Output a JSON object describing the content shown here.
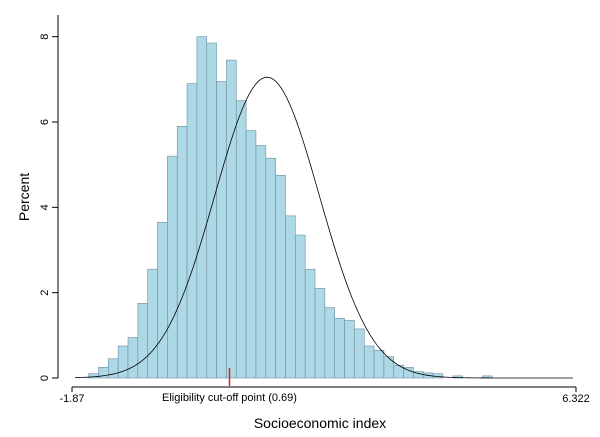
{
  "chart_data": {
    "type": "bar",
    "subtype": "histogram",
    "xlabel": "Socioeconomic index",
    "ylabel": "Percent",
    "xlim": [
      -1.87,
      6.322
    ],
    "ylim": [
      0,
      8.2
    ],
    "x_tick_labels": [
      "-1.87",
      "6.322"
    ],
    "y_ticks": [
      0,
      2,
      4,
      6,
      8
    ],
    "y_tick_labels": [
      "0",
      "2",
      "4",
      "6",
      "8"
    ],
    "grid": false,
    "legend": "none",
    "bar_color": "#add8e6",
    "bar_edge_color": "#6e8fa0",
    "curve_color": "#000000",
    "cutoff_color": "#e02020",
    "bins": {
      "start": -1.6,
      "width": 0.16,
      "values": [
        0.1,
        0.25,
        0.45,
        0.75,
        0.95,
        1.75,
        2.55,
        3.65,
        5.2,
        5.9,
        6.9,
        8.0,
        7.85,
        6.95,
        7.45,
        6.5,
        5.8,
        5.45,
        5.15,
        4.75,
        3.8,
        3.35,
        2.55,
        2.1,
        1.65,
        1.4,
        1.35,
        1.15,
        0.75,
        0.65,
        0.5,
        0.3,
        0.25,
        0.15,
        0.12,
        0.1,
        0.0,
        0.05,
        0.0,
        0.0,
        0.05
      ]
    },
    "normal_curve": {
      "mean": 1.3,
      "sd": 0.85,
      "peak_percent": 7.05
    },
    "annotation": {
      "text": "Eligibility cut-off point (0.69)",
      "x": 0.69
    }
  }
}
